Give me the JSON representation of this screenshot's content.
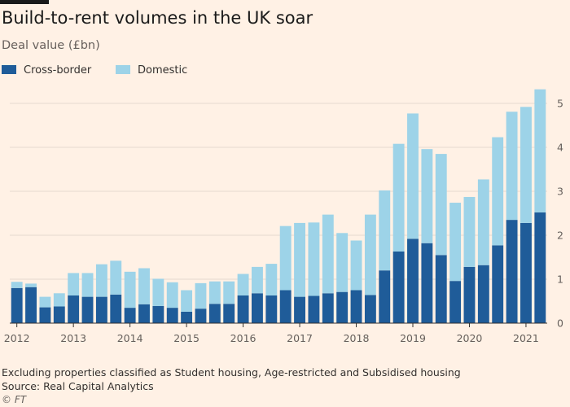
{
  "title": "Build-to-rent volumes in the UK soar",
  "subtitle": "Deal value (£bn)",
  "footnote": "Excluding properties classified as Student housing, Age-restricted and Subsidised housing",
  "source": "Source: Real Capital Analytics",
  "credit": "© FT",
  "colors": {
    "cross_border": "#1f5c99",
    "domestic": "#9dd3e8",
    "background": "#fff1e5",
    "grid": "#e6d9ce",
    "axis": "#33302e"
  },
  "chart_data": {
    "type": "bar",
    "stacked": true,
    "categories": [
      "2012 Q1",
      "2012 Q2",
      "2012 Q3",
      "2012 Q4",
      "2013 Q1",
      "2013 Q2",
      "2013 Q3",
      "2013 Q4",
      "2014 Q1",
      "2014 Q2",
      "2014 Q3",
      "2014 Q4",
      "2015 Q1",
      "2015 Q2",
      "2015 Q3",
      "2015 Q4",
      "2016 Q1",
      "2016 Q2",
      "2016 Q3",
      "2016 Q4",
      "2017 Q1",
      "2017 Q2",
      "2017 Q3",
      "2017 Q4",
      "2018 Q1",
      "2018 Q2",
      "2018 Q3",
      "2018 Q4",
      "2019 Q1",
      "2019 Q2",
      "2019 Q3",
      "2019 Q4",
      "2020 Q1",
      "2020 Q2",
      "2020 Q3",
      "2020 Q4",
      "2021 Q1",
      "2021 Q2"
    ],
    "series": [
      {
        "name": "Cross-border",
        "color": "#1f5c99",
        "values": [
          0.8,
          0.82,
          0.36,
          0.38,
          0.63,
          0.6,
          0.6,
          0.65,
          0.35,
          0.43,
          0.39,
          0.35,
          0.26,
          0.33,
          0.44,
          0.44,
          0.63,
          0.68,
          0.63,
          0.75,
          0.6,
          0.62,
          0.68,
          0.71,
          0.75,
          0.64,
          1.2,
          1.63,
          1.92,
          1.82,
          1.55,
          0.96,
          1.28,
          1.32,
          1.77,
          2.35,
          2.28,
          2.52
        ]
      },
      {
        "name": "Domestic",
        "color": "#9dd3e8",
        "values": [
          0.14,
          0.08,
          0.24,
          0.3,
          0.51,
          0.54,
          0.74,
          0.77,
          0.82,
          0.82,
          0.62,
          0.58,
          0.49,
          0.58,
          0.51,
          0.51,
          0.49,
          0.6,
          0.72,
          1.46,
          1.68,
          1.67,
          1.79,
          1.34,
          1.13,
          1.83,
          1.82,
          2.45,
          2.85,
          2.14,
          2.3,
          1.78,
          1.59,
          1.95,
          2.46,
          2.46,
          2.64,
          2.8
        ]
      }
    ],
    "ylim": [
      0,
      5.5
    ],
    "y_ticks": [
      0,
      1,
      2,
      3,
      4,
      5
    ],
    "x_tick_labels": [
      "2012",
      "2013",
      "2014",
      "2015",
      "2016",
      "2017",
      "2018",
      "2019",
      "2020",
      "2021"
    ],
    "grid": true,
    "y_axis_position": "right",
    "legend_position": "top-left"
  }
}
